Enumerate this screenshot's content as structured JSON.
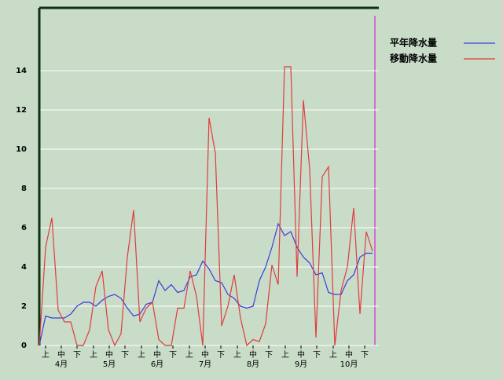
{
  "chart_data": {
    "type": "line",
    "x": [
      0,
      4,
      8,
      12,
      16,
      20,
      24,
      28,
      32,
      36,
      40,
      44,
      48,
      52,
      56,
      60,
      64,
      68,
      72,
      76,
      80,
      84,
      88,
      92,
      96,
      100,
      104,
      108,
      112,
      116,
      120,
      124,
      128,
      132,
      136,
      140,
      144,
      148,
      152,
      156,
      160,
      164,
      168,
      172,
      176,
      180,
      184,
      188,
      192,
      196,
      200,
      204,
      208,
      212
    ],
    "series": [
      {
        "name": "平年降水量",
        "color": "#3c3cdc",
        "values": [
          0,
          1.5,
          1.4,
          1.4,
          1.4,
          1.6,
          2.0,
          2.2,
          2.2,
          2.0,
          2.3,
          2.5,
          2.6,
          2.4,
          1.9,
          1.5,
          1.6,
          2.1,
          2.2,
          3.3,
          2.8,
          3.1,
          2.7,
          2.8,
          3.5,
          3.6,
          4.3,
          3.9,
          3.3,
          3.2,
          2.6,
          2.4,
          2.0,
          1.9,
          2.0,
          3.3,
          4.0,
          5.0,
          6.2,
          5.6,
          5.8,
          5.0,
          4.5,
          4.2,
          3.6,
          3.7,
          2.7,
          2.6,
          2.6,
          3.3,
          3.6,
          4.5,
          4.7,
          4.7
        ]
      },
      {
        "name": "移動降水量",
        "color": "#e03c3c",
        "values": [
          0,
          5.0,
          6.5,
          1.8,
          1.2,
          1.2,
          0,
          0,
          0.8,
          3.0,
          3.8,
          0.8,
          0,
          0.6,
          4.5,
          6.9,
          1.2,
          1.9,
          2.2,
          0.3,
          0,
          0,
          1.9,
          1.9,
          3.8,
          2.5,
          0,
          11.6,
          9.8,
          1.0,
          2.0,
          3.6,
          1.4,
          0,
          0.3,
          0.2,
          1.1,
          4.1,
          3.1,
          14.2,
          14.2,
          3.5,
          12.5,
          9.0,
          0.4,
          8.6,
          9.1,
          0,
          2.8,
          4.0,
          7.0,
          1.6,
          5.8,
          4.8
        ]
      }
    ],
    "xlim": [
      0,
      216
    ],
    "xticks": [
      {
        "value": 4,
        "label": "上"
      },
      {
        "value": 14,
        "label": "中"
      },
      {
        "value": 24,
        "label": "下"
      },
      {
        "value": 34.5,
        "label": "上"
      },
      {
        "value": 44.5,
        "label": "中"
      },
      {
        "value": 54.5,
        "label": "下"
      },
      {
        "value": 65,
        "label": "上"
      },
      {
        "value": 75,
        "label": "中"
      },
      {
        "value": 85,
        "label": "下"
      },
      {
        "value": 95.5,
        "label": "上"
      },
      {
        "value": 105.5,
        "label": "中"
      },
      {
        "value": 115.5,
        "label": "下"
      },
      {
        "value": 126,
        "label": "上"
      },
      {
        "value": 136,
        "label": "中"
      },
      {
        "value": 146,
        "label": "下"
      },
      {
        "value": 156.5,
        "label": "上"
      },
      {
        "value": 166.5,
        "label": "中"
      },
      {
        "value": 176.5,
        "label": "下"
      },
      {
        "value": 187,
        "label": "上"
      },
      {
        "value": 197,
        "label": "中"
      },
      {
        "value": 207,
        "label": "下"
      }
    ],
    "month_labels": [
      {
        "value": 14,
        "label": "4月"
      },
      {
        "value": 44.5,
        "label": "5月"
      },
      {
        "value": 75,
        "label": "6月"
      },
      {
        "value": 105.5,
        "label": "7月"
      },
      {
        "value": 136,
        "label": "8月"
      },
      {
        "value": 166.5,
        "label": "9月"
      },
      {
        "value": 197,
        "label": "10月"
      }
    ],
    "ylim": [
      0,
      17.2
    ],
    "yticks": [
      0,
      2,
      4,
      6,
      8,
      10,
      12,
      14
    ],
    "grid": true,
    "legend": "top-right"
  }
}
